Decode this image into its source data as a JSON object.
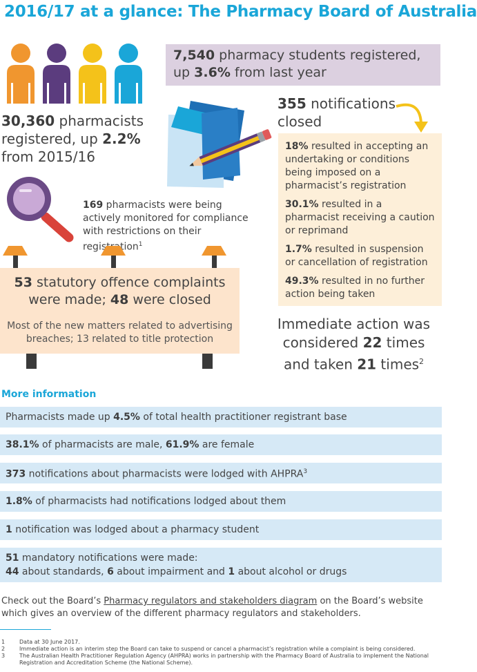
{
  "title": "2016/17 at a glance: The Pharmacy Board of Australia",
  "students": {
    "num": "7,540",
    "text1": " pharmacy students registered,",
    "text2": "up ",
    "pct": "3.6%",
    "text3": " from last year"
  },
  "pharmacists": {
    "num": "30,360",
    "text1": " pharmacists",
    "text2": "registered, up ",
    "pct": "2.2%",
    "text3": "from 2015/16"
  },
  "notifications_closed": {
    "num": "355",
    "text1": " notifications",
    "text2": "closed"
  },
  "outcomes": [
    {
      "pct": "18%",
      "text": " resulted in accepting an undertaking or conditions being imposed on a pharmacist’s registration"
    },
    {
      "pct": "30.1%",
      "text": " resulted in a pharmacist receiving a caution or reprimand"
    },
    {
      "pct": "1.7%",
      "text": " resulted in suspension or cancellation of registration"
    },
    {
      "pct": "49.3%",
      "text": " resulted in no further action being taken"
    }
  ],
  "monitored": {
    "num": "169",
    "text": " pharmacists were being actively monitored for compliance with restrictions on their registration",
    "sup": "1"
  },
  "statutory": {
    "num1": "53",
    "text1": " statutory offence complaints",
    "text2": "were made; ",
    "num2": "48",
    "text3": " were closed",
    "sub": "Most of the new matters related to advertising breaches; 13 related to title protection"
  },
  "immediate": {
    "text1": "Immediate action was",
    "text2": "considered ",
    "num1": "22",
    "text3": " times",
    "text4": "and taken ",
    "num2": "21",
    "text5": " times",
    "sup": "2"
  },
  "more_info": {
    "heading": "More information",
    "bar1": {
      "pre": "Pharmacists made up ",
      "num": "4.5%",
      "post": " of total health practitioner registrant base"
    },
    "bar2": {
      "num1": "38.1%",
      "mid": " of pharmacists are male, ",
      "num2": "61.9%",
      "post": " are female"
    },
    "bar3": {
      "num": "373",
      "post": " notifications about pharmacists were lodged with AHPRA",
      "sup": "3"
    },
    "bar4": {
      "num": "1.8%",
      "post": " of pharmacists had notifications lodged about them"
    },
    "bar5": {
      "num": "1",
      "post": " notification was lodged about a pharmacy student"
    },
    "bar6": {
      "num": "51",
      "line1": " mandatory notifications were made:",
      "n1": "44",
      "t1": " about standards, ",
      "n2": "6",
      "t2": " about impairment and ",
      "n3": "1",
      "t3": " about alcohol or drugs"
    }
  },
  "checkout": {
    "pre": "Check out the Board’s ",
    "link": "Pharmacy regulators and stakeholders diagram",
    "post": " on the Board’s website which gives an overview of the different pharmacy regulators and stakeholders."
  },
  "footnotes": [
    {
      "n": "1",
      "text": "Data at 30 June 2017."
    },
    {
      "n": "2",
      "text": "Immediate action is an interim step the Board can take to suspend or cancel a pharmacist’s registration while a complaint is being considered."
    },
    {
      "n": "3",
      "text": "The Australian Health Practitioner Regulation Agency (AHPRA) works in partnership with the Pharmacy Board of Australia to implement the National Registration and Accreditation Scheme (the National Scheme)."
    }
  ],
  "colors": {
    "accent": "#1aa6d8",
    "purple_box": "#dcd0e0",
    "peach_box": "#fdefd9",
    "orange_box": "#fde4cc",
    "blue_bar": "#d6e9f6",
    "person_orange": "#f0962f",
    "person_purple": "#5b3c7e",
    "person_yellow": "#f4c21a",
    "person_blue": "#1aa6d8"
  },
  "icons": [
    "people-icon",
    "documents-pencil-icon",
    "magnifier-icon",
    "curved-arrow-icon",
    "lamp-post-icon"
  ]
}
